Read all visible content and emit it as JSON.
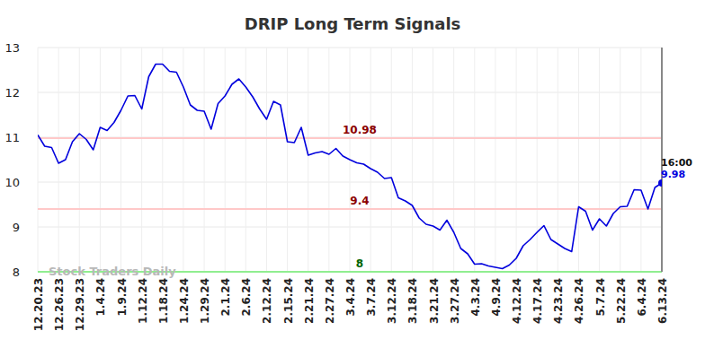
{
  "chart_data": {
    "type": "line",
    "title": "DRIP Long Term Signals",
    "categories": [
      "12.20.23",
      null,
      null,
      "12.26.23",
      null,
      null,
      "12.29.23",
      null,
      null,
      "1.4.24",
      null,
      null,
      "1.9.24",
      null,
      null,
      "1.12.24",
      null,
      null,
      "1.18.24",
      null,
      null,
      "1.24.24",
      null,
      null,
      "1.29.24",
      null,
      null,
      "2.1.24",
      null,
      null,
      "2.6.24",
      null,
      null,
      "2.12.24",
      null,
      null,
      "2.15.24",
      null,
      null,
      "2.21.24",
      null,
      null,
      "2.27.24",
      null,
      null,
      "3.4.24",
      null,
      null,
      "3.7.24",
      null,
      null,
      "3.12.24",
      null,
      null,
      "3.18.24",
      null,
      null,
      "3.21.24",
      null,
      null,
      "3.27.24",
      null,
      null,
      "4.3.24",
      null,
      null,
      "4.9.24",
      null,
      null,
      "4.12.24",
      null,
      null,
      "4.17.24",
      null,
      null,
      "4.23.24",
      null,
      null,
      "4.26.24",
      null,
      null,
      "5.7.24",
      null,
      null,
      "5.22.24",
      null,
      null,
      "6.4.24",
      null,
      null,
      "6.13.24"
    ],
    "series": [
      {
        "name": "DRIP",
        "color": "#0000dd",
        "values": [
          11.05,
          10.8,
          10.77,
          10.42,
          10.5,
          10.9,
          11.08,
          10.95,
          10.72,
          11.22,
          11.15,
          11.33,
          11.6,
          11.92,
          11.93,
          11.63,
          12.35,
          12.63,
          12.63,
          12.47,
          12.45,
          12.12,
          11.72,
          11.6,
          11.58,
          11.18,
          11.75,
          11.92,
          12.18,
          12.3,
          12.12,
          11.9,
          11.63,
          11.4,
          11.8,
          11.72,
          10.9,
          10.88,
          11.22,
          10.6,
          10.65,
          10.68,
          10.62,
          10.75,
          10.58,
          10.5,
          10.43,
          10.4,
          10.3,
          10.22,
          10.08,
          10.1,
          9.65,
          9.58,
          9.48,
          9.2,
          9.06,
          9.02,
          8.93,
          9.15,
          8.88,
          8.52,
          8.4,
          8.17,
          8.18,
          8.13,
          8.1,
          8.07,
          8.15,
          8.3,
          8.58,
          8.72,
          8.88,
          9.03,
          8.72,
          8.62,
          8.52,
          8.45,
          9.45,
          9.35,
          8.93,
          9.18,
          9.02,
          9.3,
          9.45,
          9.46,
          9.83,
          9.82,
          9.4,
          9.88,
          9.98
        ]
      }
    ],
    "ylim": [
      8,
      13
    ],
    "yticks": [
      8,
      9,
      10,
      11,
      12,
      13
    ],
    "grid": true,
    "annotations": [
      {
        "value": 10.98,
        "label": "10.98",
        "color": "#ffc8c8",
        "text_color": "#8b0000"
      },
      {
        "value": 9.4,
        "label": "9.4",
        "color": "#ffc8c8",
        "text_color": "#8b0000"
      },
      {
        "value": 8,
        "label": "8",
        "color": "#90ee90",
        "text_color": "#006400"
      }
    ],
    "watermark": "Stock Traders Daily",
    "last_label": {
      "time": "16:00",
      "value": 9.98
    }
  }
}
